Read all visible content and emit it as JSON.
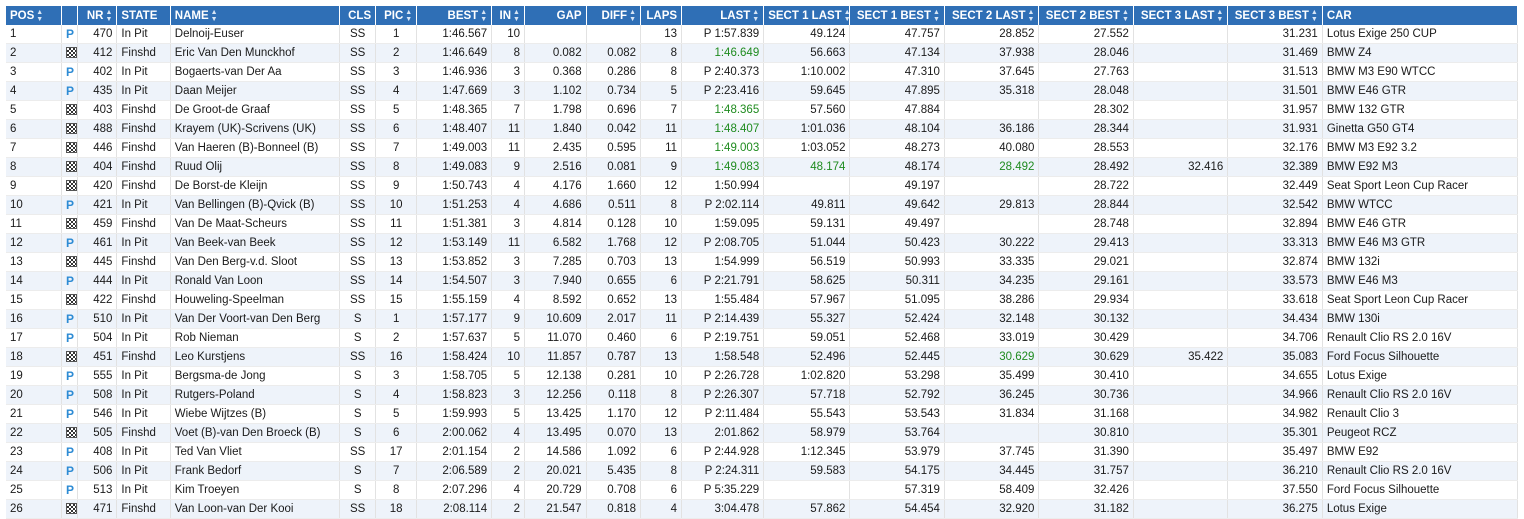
{
  "columns": [
    {
      "key": "pos",
      "label": "POS",
      "sortable": true
    },
    {
      "key": "icon",
      "label": "",
      "sortable": false
    },
    {
      "key": "nr",
      "label": "NR",
      "sortable": true
    },
    {
      "key": "state",
      "label": "STATE",
      "sortable": false
    },
    {
      "key": "name",
      "label": "NAME",
      "sortable": true
    },
    {
      "key": "cls",
      "label": "CLS",
      "sortable": false
    },
    {
      "key": "pic",
      "label": "PIC",
      "sortable": true
    },
    {
      "key": "best",
      "label": "BEST",
      "sortable": true
    },
    {
      "key": "in",
      "label": "IN",
      "sortable": true
    },
    {
      "key": "gap",
      "label": "GAP",
      "sortable": false
    },
    {
      "key": "diff",
      "label": "DIFF",
      "sortable": true
    },
    {
      "key": "laps",
      "label": "LAPS",
      "sortable": false
    },
    {
      "key": "last",
      "label": "LAST",
      "sortable": true
    },
    {
      "key": "s1last",
      "label": "SECT 1 LAST",
      "sortable": true
    },
    {
      "key": "s1best",
      "label": "SECT 1 BEST",
      "sortable": true
    },
    {
      "key": "s2last",
      "label": "SECT 2 LAST",
      "sortable": true
    },
    {
      "key": "s2best",
      "label": "SECT 2 BEST",
      "sortable": true
    },
    {
      "key": "s3last",
      "label": "SECT 3 LAST",
      "sortable": true
    },
    {
      "key": "s3best",
      "label": "SECT 3 BEST",
      "sortable": true
    },
    {
      "key": "car",
      "label": "CAR",
      "sortable": false
    }
  ],
  "icon_names": {
    "pit": "pit-icon",
    "finish": "checkered-flag-icon"
  },
  "pit_glyph": "P",
  "colors": {
    "header_bg": "#2f6fb6",
    "best_green": "#1e8b1e",
    "pit_blue": "#2d8bd4",
    "row_alt": "#eef3fa"
  },
  "rows": [
    {
      "pos": "1",
      "icon": "pit",
      "nr": "470",
      "state": "In Pit",
      "name": "Delnoij-Euser",
      "cls": "SS",
      "pic": "1",
      "best": "1:46.567",
      "in": "10",
      "gap": "",
      "diff": "",
      "laps": "13",
      "last": "P 1:57.839",
      "s1last": "49.124",
      "s1best": "47.757",
      "s2last": "28.852",
      "s2best": "27.552",
      "s3last": "",
      "s3best": "31.231",
      "car": "Lotus Exige 250 CUP",
      "green": []
    },
    {
      "pos": "2",
      "icon": "finish",
      "nr": "412",
      "state": "Finshd",
      "name": "Eric Van Den Munckhof",
      "cls": "SS",
      "pic": "2",
      "best": "1:46.649",
      "in": "8",
      "gap": "0.082",
      "diff": "0.082",
      "laps": "8",
      "last": "1:46.649",
      "s1last": "56.663",
      "s1best": "47.134",
      "s2last": "37.938",
      "s2best": "28.046",
      "s3last": "",
      "s3best": "31.469",
      "car": "BMW Z4",
      "green": [
        "last"
      ]
    },
    {
      "pos": "3",
      "icon": "pit",
      "nr": "402",
      "state": "In Pit",
      "name": "Bogaerts-van Der Aa",
      "cls": "SS",
      "pic": "3",
      "best": "1:46.936",
      "in": "3",
      "gap": "0.368",
      "diff": "0.286",
      "laps": "8",
      "last": "P 2:40.373",
      "s1last": "1:10.002",
      "s1best": "47.310",
      "s2last": "37.645",
      "s2best": "27.763",
      "s3last": "",
      "s3best": "31.513",
      "car": "BMW M3 E90 WTCC",
      "green": []
    },
    {
      "pos": "4",
      "icon": "pit",
      "nr": "435",
      "state": "In Pit",
      "name": "Daan Meijer",
      "cls": "SS",
      "pic": "4",
      "best": "1:47.669",
      "in": "3",
      "gap": "1.102",
      "diff": "0.734",
      "laps": "5",
      "last": "P 2:23.416",
      "s1last": "59.645",
      "s1best": "47.895",
      "s2last": "35.318",
      "s2best": "28.048",
      "s3last": "",
      "s3best": "31.501",
      "car": "BMW E46 GTR",
      "green": []
    },
    {
      "pos": "5",
      "icon": "finish",
      "nr": "403",
      "state": "Finshd",
      "name": "De Groot-de Graaf",
      "cls": "SS",
      "pic": "5",
      "best": "1:48.365",
      "in": "7",
      "gap": "1.798",
      "diff": "0.696",
      "laps": "7",
      "last": "1:48.365",
      "s1last": "57.560",
      "s1best": "47.884",
      "s2last": "",
      "s2best": "28.302",
      "s3last": "",
      "s3best": "31.957",
      "car": "BMW 132 GTR",
      "green": [
        "last"
      ]
    },
    {
      "pos": "6",
      "icon": "finish",
      "nr": "488",
      "state": "Finshd",
      "name": "Krayem (UK)-Scrivens (UK)",
      "cls": "SS",
      "pic": "6",
      "best": "1:48.407",
      "in": "11",
      "gap": "1.840",
      "diff": "0.042",
      "laps": "11",
      "last": "1:48.407",
      "s1last": "1:01.036",
      "s1best": "48.104",
      "s2last": "36.186",
      "s2best": "28.344",
      "s3last": "",
      "s3best": "31.931",
      "car": "Ginetta G50 GT4",
      "green": [
        "last"
      ]
    },
    {
      "pos": "7",
      "icon": "finish",
      "nr": "446",
      "state": "Finshd",
      "name": "Van Haeren (B)-Bonneel (B)",
      "cls": "SS",
      "pic": "7",
      "best": "1:49.003",
      "in": "11",
      "gap": "2.435",
      "diff": "0.595",
      "laps": "11",
      "last": "1:49.003",
      "s1last": "1:03.052",
      "s1best": "48.273",
      "s2last": "40.080",
      "s2best": "28.553",
      "s3last": "",
      "s3best": "32.176",
      "car": "BMW M3 E92 3.2",
      "green": [
        "last"
      ]
    },
    {
      "pos": "8",
      "icon": "finish",
      "nr": "404",
      "state": "Finshd",
      "name": "Ruud Olij",
      "cls": "SS",
      "pic": "8",
      "best": "1:49.083",
      "in": "9",
      "gap": "2.516",
      "diff": "0.081",
      "laps": "9",
      "last": "1:49.083",
      "s1last": "48.174",
      "s1best": "48.174",
      "s2last": "28.492",
      "s2best": "28.492",
      "s3last": "32.416",
      "s3best": "32.389",
      "car": "BMW E92 M3",
      "green": [
        "last",
        "s1last",
        "s2last"
      ]
    },
    {
      "pos": "9",
      "icon": "finish",
      "nr": "420",
      "state": "Finshd",
      "name": "De Borst-de Kleijn",
      "cls": "SS",
      "pic": "9",
      "best": "1:50.743",
      "in": "4",
      "gap": "4.176",
      "diff": "1.660",
      "laps": "12",
      "last": "1:50.994",
      "s1last": "",
      "s1best": "49.197",
      "s2last": "",
      "s2best": "28.722",
      "s3last": "",
      "s3best": "32.449",
      "car": "Seat Sport Leon Cup Racer",
      "green": []
    },
    {
      "pos": "10",
      "icon": "pit",
      "nr": "421",
      "state": "In Pit",
      "name": "Van Bellingen (B)-Qvick (B)",
      "cls": "SS",
      "pic": "10",
      "best": "1:51.253",
      "in": "4",
      "gap": "4.686",
      "diff": "0.511",
      "laps": "8",
      "last": "P 2:02.114",
      "s1last": "49.811",
      "s1best": "49.642",
      "s2last": "29.813",
      "s2best": "28.844",
      "s3last": "",
      "s3best": "32.542",
      "car": "BMW WTCC",
      "green": []
    },
    {
      "pos": "11",
      "icon": "finish",
      "nr": "459",
      "state": "Finshd",
      "name": "Van De Maat-Scheurs",
      "cls": "SS",
      "pic": "11",
      "best": "1:51.381",
      "in": "3",
      "gap": "4.814",
      "diff": "0.128",
      "laps": "10",
      "last": "1:59.095",
      "s1last": "59.131",
      "s1best": "49.497",
      "s2last": "",
      "s2best": "28.748",
      "s3last": "",
      "s3best": "32.894",
      "car": "BMW E46 GTR",
      "green": []
    },
    {
      "pos": "12",
      "icon": "pit",
      "nr": "461",
      "state": "In Pit",
      "name": "Van Beek-van Beek",
      "cls": "SS",
      "pic": "12",
      "best": "1:53.149",
      "in": "11",
      "gap": "6.582",
      "diff": "1.768",
      "laps": "12",
      "last": "P 2:08.705",
      "s1last": "51.044",
      "s1best": "50.423",
      "s2last": "30.222",
      "s2best": "29.413",
      "s3last": "",
      "s3best": "33.313",
      "car": "BMW E46 M3 GTR",
      "green": []
    },
    {
      "pos": "13",
      "icon": "finish",
      "nr": "445",
      "state": "Finshd",
      "name": "Van Den Berg-v.d. Sloot",
      "cls": "SS",
      "pic": "13",
      "best": "1:53.852",
      "in": "3",
      "gap": "7.285",
      "diff": "0.703",
      "laps": "13",
      "last": "1:54.999",
      "s1last": "56.519",
      "s1best": "50.993",
      "s2last": "33.335",
      "s2best": "29.021",
      "s3last": "",
      "s3best": "32.874",
      "car": "BMW 132i",
      "green": []
    },
    {
      "pos": "14",
      "icon": "pit",
      "nr": "444",
      "state": "In Pit",
      "name": "Ronald Van Loon",
      "cls": "SS",
      "pic": "14",
      "best": "1:54.507",
      "in": "3",
      "gap": "7.940",
      "diff": "0.655",
      "laps": "6",
      "last": "P 2:21.791",
      "s1last": "58.625",
      "s1best": "50.311",
      "s2last": "34.235",
      "s2best": "29.161",
      "s3last": "",
      "s3best": "33.573",
      "car": "BMW E46 M3",
      "green": []
    },
    {
      "pos": "15",
      "icon": "finish",
      "nr": "422",
      "state": "Finshd",
      "name": "Houweling-Speelman",
      "cls": "SS",
      "pic": "15",
      "best": "1:55.159",
      "in": "4",
      "gap": "8.592",
      "diff": "0.652",
      "laps": "13",
      "last": "1:55.484",
      "s1last": "57.967",
      "s1best": "51.095",
      "s2last": "38.286",
      "s2best": "29.934",
      "s3last": "",
      "s3best": "33.618",
      "car": "Seat Sport Leon Cup Racer",
      "green": []
    },
    {
      "pos": "16",
      "icon": "pit",
      "nr": "510",
      "state": "In Pit",
      "name": "Van Der Voort-van Den Berg",
      "cls": "S",
      "pic": "1",
      "best": "1:57.177",
      "in": "9",
      "gap": "10.609",
      "diff": "2.017",
      "laps": "11",
      "last": "P 2:14.439",
      "s1last": "55.327",
      "s1best": "52.424",
      "s2last": "32.148",
      "s2best": "30.132",
      "s3last": "",
      "s3best": "34.434",
      "car": "BMW 130i",
      "green": []
    },
    {
      "pos": "17",
      "icon": "pit",
      "nr": "504",
      "state": "In Pit",
      "name": "Rob Nieman",
      "cls": "S",
      "pic": "2",
      "best": "1:57.637",
      "in": "5",
      "gap": "11.070",
      "diff": "0.460",
      "laps": "6",
      "last": "P 2:19.751",
      "s1last": "59.051",
      "s1best": "52.468",
      "s2last": "33.019",
      "s2best": "30.429",
      "s3last": "",
      "s3best": "34.706",
      "car": "Renault Clio RS 2.0 16V",
      "green": []
    },
    {
      "pos": "18",
      "icon": "finish",
      "nr": "451",
      "state": "Finshd",
      "name": "Leo Kurstjens",
      "cls": "SS",
      "pic": "16",
      "best": "1:58.424",
      "in": "10",
      "gap": "11.857",
      "diff": "0.787",
      "laps": "13",
      "last": "1:58.548",
      "s1last": "52.496",
      "s1best": "52.445",
      "s2last": "30.629",
      "s2best": "30.629",
      "s3last": "35.422",
      "s3best": "35.083",
      "car": "Ford Focus Silhouette",
      "green": [
        "s2last"
      ]
    },
    {
      "pos": "19",
      "icon": "pit",
      "nr": "555",
      "state": "In Pit",
      "name": "Bergsma-de Jong",
      "cls": "S",
      "pic": "3",
      "best": "1:58.705",
      "in": "5",
      "gap": "12.138",
      "diff": "0.281",
      "laps": "10",
      "last": "P 2:26.728",
      "s1last": "1:02.820",
      "s1best": "53.298",
      "s2last": "35.499",
      "s2best": "30.410",
      "s3last": "",
      "s3best": "34.655",
      "car": "Lotus Exige",
      "green": []
    },
    {
      "pos": "20",
      "icon": "pit",
      "nr": "508",
      "state": "In Pit",
      "name": "Rutgers-Poland",
      "cls": "S",
      "pic": "4",
      "best": "1:58.823",
      "in": "3",
      "gap": "12.256",
      "diff": "0.118",
      "laps": "8",
      "last": "P 2:26.307",
      "s1last": "57.718",
      "s1best": "52.792",
      "s2last": "36.245",
      "s2best": "30.736",
      "s3last": "",
      "s3best": "34.966",
      "car": "Renault Clio RS 2.0 16V",
      "green": []
    },
    {
      "pos": "21",
      "icon": "pit",
      "nr": "546",
      "state": "In Pit",
      "name": "Wiebe Wijtzes (B)",
      "cls": "S",
      "pic": "5",
      "best": "1:59.993",
      "in": "5",
      "gap": "13.425",
      "diff": "1.170",
      "laps": "12",
      "last": "P 2:11.484",
      "s1last": "55.543",
      "s1best": "53.543",
      "s2last": "31.834",
      "s2best": "31.168",
      "s3last": "",
      "s3best": "34.982",
      "car": "Renault Clio 3",
      "green": []
    },
    {
      "pos": "22",
      "icon": "finish",
      "nr": "505",
      "state": "Finshd",
      "name": "Voet (B)-van Den Broeck (B)",
      "cls": "S",
      "pic": "6",
      "best": "2:00.062",
      "in": "4",
      "gap": "13.495",
      "diff": "0.070",
      "laps": "13",
      "last": "2:01.862",
      "s1last": "58.979",
      "s1best": "53.764",
      "s2last": "",
      "s2best": "30.810",
      "s3last": "",
      "s3best": "35.301",
      "car": "Peugeot RCZ",
      "green": []
    },
    {
      "pos": "23",
      "icon": "pit",
      "nr": "408",
      "state": "In Pit",
      "name": "Ted Van Vliet",
      "cls": "SS",
      "pic": "17",
      "best": "2:01.154",
      "in": "2",
      "gap": "14.586",
      "diff": "1.092",
      "laps": "6",
      "last": "P 2:44.928",
      "s1last": "1:12.345",
      "s1best": "53.979",
      "s2last": "37.745",
      "s2best": "31.390",
      "s3last": "",
      "s3best": "35.497",
      "car": "BMW E92",
      "green": []
    },
    {
      "pos": "24",
      "icon": "pit",
      "nr": "506",
      "state": "In Pit",
      "name": "Frank Bedorf",
      "cls": "S",
      "pic": "7",
      "best": "2:06.589",
      "in": "2",
      "gap": "20.021",
      "diff": "5.435",
      "laps": "8",
      "last": "P 2:24.311",
      "s1last": "59.583",
      "s1best": "54.175",
      "s2last": "34.445",
      "s2best": "31.757",
      "s3last": "",
      "s3best": "36.210",
      "car": "Renault Clio RS 2.0 16V",
      "green": []
    },
    {
      "pos": "25",
      "icon": "pit",
      "nr": "513",
      "state": "In Pit",
      "name": "Kim Troeyen",
      "cls": "S",
      "pic": "8",
      "best": "2:07.296",
      "in": "4",
      "gap": "20.729",
      "diff": "0.708",
      "laps": "6",
      "last": "P 5:35.229",
      "s1last": "",
      "s1best": "57.319",
      "s2last": "58.409",
      "s2best": "32.426",
      "s3last": "",
      "s3best": "37.550",
      "car": "Ford Focus Silhouette",
      "green": []
    },
    {
      "pos": "26",
      "icon": "finish",
      "nr": "471",
      "state": "Finshd",
      "name": "Van Loon-van Der Kooi",
      "cls": "SS",
      "pic": "18",
      "best": "2:08.114",
      "in": "2",
      "gap": "21.547",
      "diff": "0.818",
      "laps": "4",
      "last": "3:04.478",
      "s1last": "57.862",
      "s1best": "54.454",
      "s2last": "32.920",
      "s2best": "31.182",
      "s3last": "",
      "s3best": "36.275",
      "car": "Lotus Exige",
      "green": []
    }
  ]
}
